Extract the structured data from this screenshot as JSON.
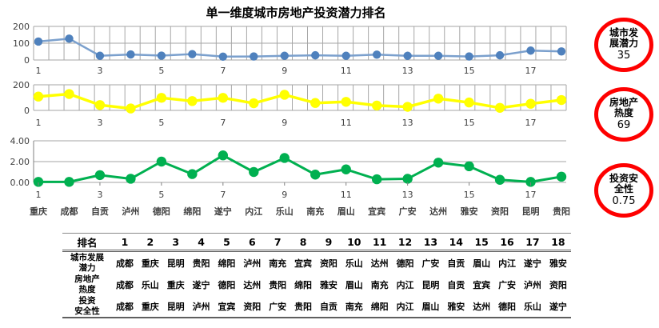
{
  "title": "单一维度城市房地产投资潜力排名",
  "chart_data": {
    "type": "line",
    "title": "单一维度城市房地产投资潜力排名",
    "x": [
      1,
      2,
      3,
      4,
      5,
      6,
      7,
      8,
      9,
      10,
      11,
      12,
      13,
      14,
      15,
      16,
      17,
      18
    ],
    "x_tick_labels": [
      "1",
      "3",
      "5",
      "7",
      "9",
      "11",
      "13",
      "15",
      "17"
    ],
    "city_category_labels": [
      "重庆",
      "成都",
      "自贡",
      "泸州",
      "德阳",
      "绵阳",
      "遂宁",
      "内江",
      "乐山",
      "南充",
      "眉山",
      "宜宾",
      "广安",
      "达州",
      "雅安",
      "资阳",
      "昆明",
      "贵阳"
    ],
    "grid": true,
    "legend_position": "none",
    "series": [
      {
        "name": "城市发展潜力",
        "line_color": "#7ba0cd",
        "marker_color": "#4f81bd",
        "ylim": [
          0,
          200
        ],
        "y_ticks": [
          "200",
          "100",
          "0"
        ],
        "values": [
          110,
          127,
          25,
          33,
          26,
          35,
          20,
          21,
          25,
          28,
          25,
          32,
          25,
          25,
          21,
          28,
          56,
          51
        ]
      },
      {
        "name": "房地产热度",
        "line_color": "#ffff00",
        "marker_color": "#ffff00",
        "ylim": [
          0,
          200
        ],
        "y_ticks": [
          "200",
          "0"
        ],
        "values": [
          108,
          128,
          42,
          15,
          98,
          73,
          98,
          56,
          122,
          58,
          67,
          38,
          28,
          92,
          62,
          20,
          52,
          81
        ]
      },
      {
        "name": "投资安全性",
        "line_color": "#00b050",
        "marker_color": "#00b050",
        "ylim": [
          0,
          4
        ],
        "y_ticks": [
          "4.00",
          "2.00",
          "0.00"
        ],
        "values": [
          0.05,
          0.05,
          0.7,
          0.35,
          2.0,
          0.8,
          2.6,
          1.0,
          2.35,
          0.75,
          1.25,
          0.3,
          0.35,
          1.9,
          1.55,
          0.25,
          0.05,
          0.55
        ]
      }
    ]
  },
  "badges": [
    {
      "id": "city-development-potential-badge",
      "lines": [
        "城市发",
        "展潜力"
      ],
      "value": "35"
    },
    {
      "id": "real-estate-heat-badge",
      "lines": [
        "房地产",
        "热度"
      ],
      "value": "69"
    },
    {
      "id": "investment-safety-badge",
      "lines": [
        "投资安",
        "全性"
      ],
      "value": "0.75"
    }
  ],
  "table": {
    "rank_header": "排名",
    "ranks": [
      "1",
      "2",
      "3",
      "4",
      "5",
      "6",
      "7",
      "8",
      "9",
      "10",
      "11",
      "12",
      "13",
      "14",
      "15",
      "16",
      "17",
      "18"
    ],
    "rows": [
      {
        "label_lines": [
          "城市发展",
          "潜力"
        ],
        "cities": [
          "成都",
          "重庆",
          "昆明",
          "贵阳",
          "绵阳",
          "泸州",
          "南充",
          "宜宾",
          "资阳",
          "乐山",
          "达州",
          "德阳",
          "广安",
          "自贡",
          "眉山",
          "内江",
          "遂宁",
          "雅安"
        ]
      },
      {
        "label_lines": [
          "房地产",
          "热度"
        ],
        "cities": [
          "成都",
          "乐山",
          "重庆",
          "遂宁",
          "德阳",
          "达州",
          "贵阳",
          "绵阳",
          "雅安",
          "眉山",
          "南充",
          "内江",
          "昆明",
          "自贡",
          "宜宾",
          "广安",
          "泸州",
          "资阳"
        ]
      },
      {
        "label_lines": [
          "投资",
          "安全性"
        ],
        "cities": [
          "成都",
          "重庆",
          "昆明",
          "泸州",
          "宜宾",
          "资阳",
          "广安",
          "贵阳",
          "自贡",
          "南充",
          "绵阳",
          "内江",
          "眉山",
          "雅安",
          "达州",
          "德阳",
          "乐山",
          "遂宁"
        ]
      }
    ]
  },
  "colors": {
    "badge_border": "#fe0000",
    "grid_line": "#a6a6a6",
    "axis_text": "#3f3f3f",
    "blue_series": "#4f81bd",
    "yellow_series": "#ffff00",
    "green_series": "#00b050"
  }
}
